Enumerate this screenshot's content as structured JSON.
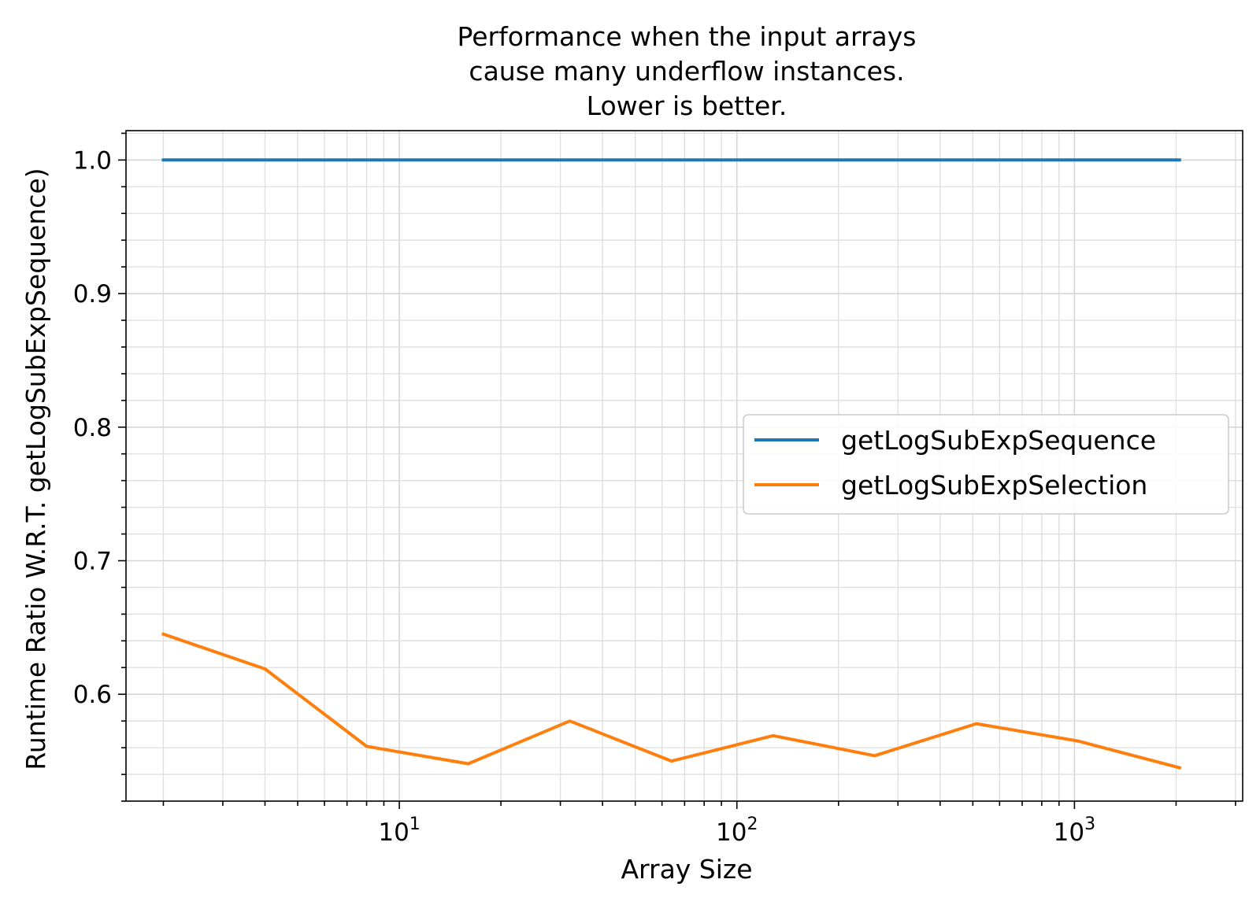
{
  "chart_data": {
    "type": "line",
    "title": [
      "Performance when the input arrays",
      "cause many underflow instances.",
      "Lower is better."
    ],
    "xlabel": "Array Size",
    "ylabel": "Runtime Ratio W.R.T. getLogSubExpSequence)",
    "xscale": "log",
    "xlim": [
      1.55,
      3150
    ],
    "ylim": [
      0.52,
      1.022
    ],
    "grid": true,
    "grid_minor": true,
    "legend_position": "center-right",
    "x": [
      2,
      4,
      8,
      16,
      32,
      64,
      128,
      256,
      512,
      1024,
      2048
    ],
    "x_ticks": [
      {
        "value": 10,
        "base": "10",
        "exp": "1"
      },
      {
        "value": 100,
        "base": "10",
        "exp": "2"
      },
      {
        "value": 1000,
        "base": "10",
        "exp": "3"
      }
    ],
    "y_ticks": [
      {
        "value": 0.6,
        "label": "0.6"
      },
      {
        "value": 0.7,
        "label": "0.7"
      },
      {
        "value": 0.8,
        "label": "0.8"
      },
      {
        "value": 0.9,
        "label": "0.9"
      },
      {
        "value": 1.0,
        "label": "1.0"
      }
    ],
    "series": [
      {
        "name": "getLogSubExpSequence",
        "color": "#1f77b4",
        "values": [
          1.0,
          1.0,
          1.0,
          1.0,
          1.0,
          1.0,
          1.0,
          1.0,
          1.0,
          1.0,
          1.0
        ]
      },
      {
        "name": "getLogSubExpSelection",
        "color": "#ff7f0e",
        "values": [
          0.645,
          0.619,
          0.561,
          0.548,
          0.58,
          0.55,
          0.569,
          0.554,
          0.578,
          0.565,
          0.545
        ]
      }
    ]
  }
}
